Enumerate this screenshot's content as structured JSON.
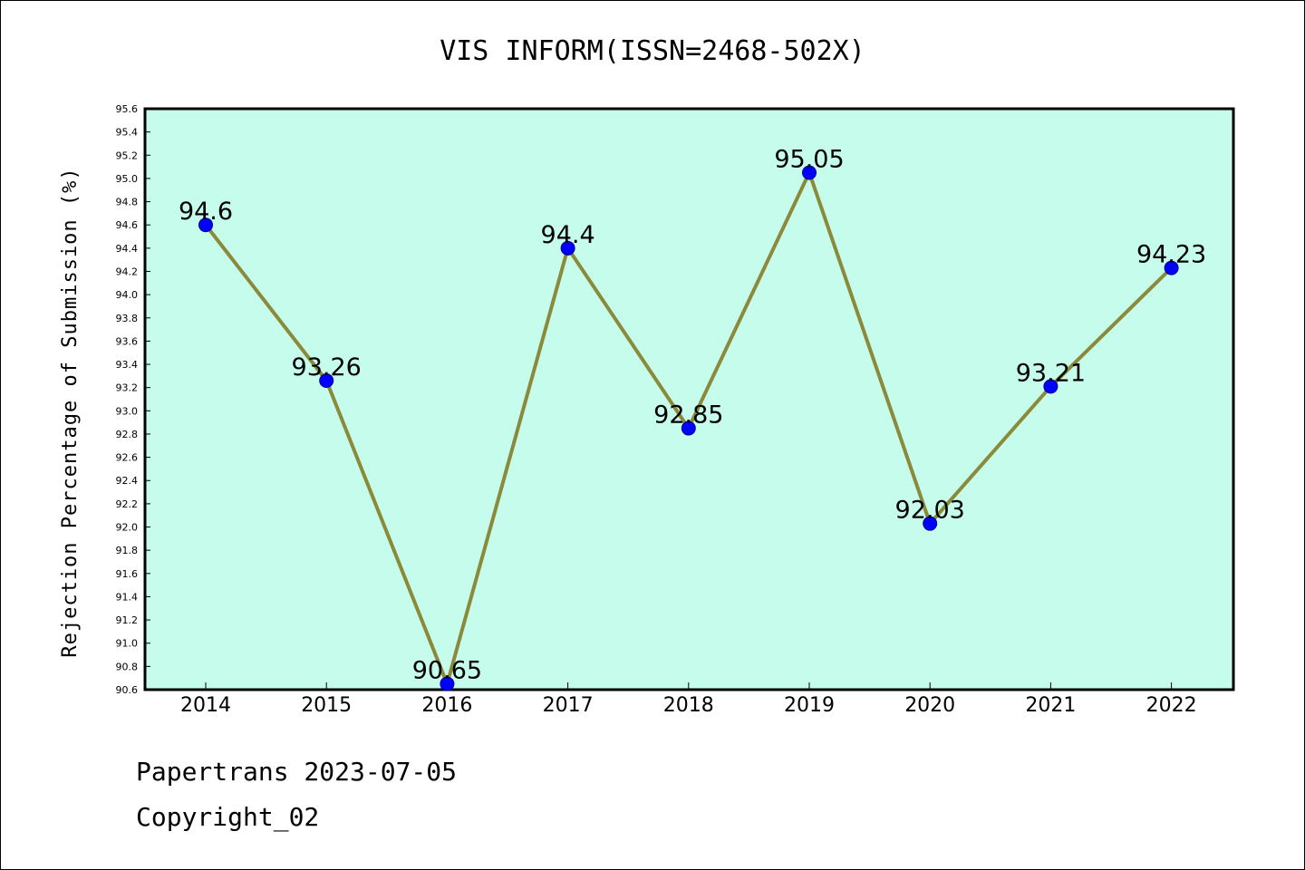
{
  "footer": {
    "line1": "Papertrans 2023-07-05",
    "line2": "Copyright_02"
  },
  "chart_data": {
    "type": "line",
    "title": "VIS INFORM(ISSN=2468-502X)",
    "xlabel": "",
    "ylabel": "Rejection Percentage of Submission (%)",
    "categories": [
      "2014",
      "2015",
      "2016",
      "2017",
      "2018",
      "2019",
      "2020",
      "2021",
      "2022"
    ],
    "values": [
      94.6,
      93.26,
      90.65,
      94.4,
      92.85,
      95.05,
      92.03,
      93.21,
      94.23
    ],
    "data_labels": [
      "94.6",
      "93.26",
      "90.65",
      "94.4",
      "92.85",
      "95.05",
      "92.03",
      "93.21",
      "94.23"
    ],
    "ylim": [
      90.6,
      95.6
    ],
    "yticks": [
      "90.6",
      "90.8",
      "91.0",
      "91.2",
      "91.4",
      "91.6",
      "91.8",
      "92.0",
      "92.2",
      "92.4",
      "92.6",
      "92.8",
      "93.0",
      "93.2",
      "93.4",
      "93.6",
      "93.8",
      "94.0",
      "94.2",
      "94.4",
      "94.6",
      "94.8",
      "95.0",
      "95.2",
      "95.4",
      "95.6"
    ],
    "grid": false,
    "legend": "none",
    "colors": {
      "plot_background": "#c6fcec",
      "line": "#8b8a3a",
      "marker": "#0000ff",
      "axes": "#000000"
    }
  }
}
